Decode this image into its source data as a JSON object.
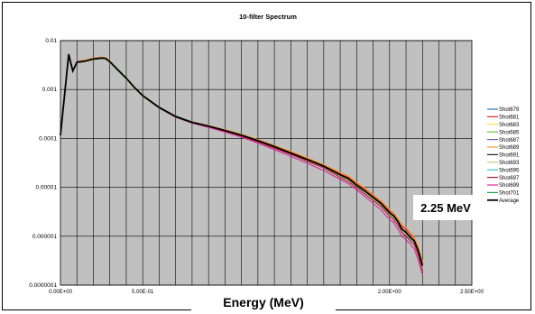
{
  "chart_data": {
    "type": "line",
    "title": "10-filter Spectrum",
    "xlabel": "Energy (MeV)",
    "ylabel": "",
    "x_scale": "linear",
    "y_scale": "log",
    "xlim": [
      0,
      2.5
    ],
    "ylim": [
      1e-07,
      0.01
    ],
    "grid": true,
    "legend_position": "right",
    "plot_background": "#c0c0c0",
    "x_tick_labels": [
      "0.00E+00",
      "5.00E-01",
      "2.00E+00",
      "2.50E+00"
    ],
    "x_tick_values": [
      0,
      0.5,
      2.0,
      2.5
    ],
    "y_tick_labels": [
      "0.01",
      "0.001",
      "0.0001",
      "0.00001",
      "0.000001",
      "0.0000001"
    ],
    "y_tick_values": [
      0.01,
      0.001,
      0.0001,
      1e-05,
      1e-06,
      1e-07
    ],
    "annotation": "2.25 MeV",
    "x": [
      0.0,
      0.05,
      0.075,
      0.1,
      0.15,
      0.2,
      0.25,
      0.275,
      0.3,
      0.35,
      0.4,
      0.45,
      0.5,
      0.6,
      0.7,
      0.8,
      0.9,
      1.0,
      1.1,
      1.2,
      1.3,
      1.4,
      1.5,
      1.6,
      1.7,
      1.75,
      1.8,
      1.85,
      1.9,
      1.95,
      2.0,
      2.025,
      2.05,
      2.075,
      2.1,
      2.125,
      2.15,
      2.175,
      2.2
    ],
    "series": [
      {
        "name": "Shot679",
        "color": "#1f78c8",
        "values": [
          0.000115,
          0.0052,
          0.0024,
          0.0036,
          0.0038,
          0.0042,
          0.0044,
          0.0043,
          0.0037,
          0.0025,
          0.0017,
          0.0011,
          0.00075,
          0.00043,
          0.00028,
          0.000215,
          0.00018,
          0.000145,
          0.000115,
          8.8e-05,
          6.6e-05,
          4.9e-05,
          3.6e-05,
          2.6e-05,
          1.7e-05,
          1.4e-05,
          1.05e-05,
          7.9e-06,
          5.8e-06,
          4.3e-06,
          2.8e-06,
          2.4e-06,
          1.8e-06,
          1.3e-06,
          1.1e-06,
          9e-07,
          7.5e-07,
          4.5e-07,
          2.2e-07
        ]
      },
      {
        "name": "Shot681",
        "color": "#e8261c",
        "values": [
          0.000115,
          0.0052,
          0.0024,
          0.0037,
          0.0039,
          0.0043,
          0.0045,
          0.0044,
          0.0038,
          0.0025,
          0.0017,
          0.0011,
          0.00075,
          0.00043,
          0.00028,
          0.000215,
          0.00018,
          0.00015,
          0.00012,
          9.3e-05,
          7e-05,
          5.2e-05,
          3.9e-05,
          2.8e-05,
          1.9e-05,
          1.6e-05,
          1.2e-05,
          9.2e-06,
          6.8e-06,
          5e-06,
          3.3e-06,
          2.9e-06,
          2.2e-06,
          1.6e-06,
          1.4e-06,
          1.1e-06,
          9e-07,
          5.8e-07,
          2.9e-07
        ]
      },
      {
        "name": "Shot683",
        "color": "#f0e040",
        "values": [
          0.000115,
          0.0051,
          0.0024,
          0.0036,
          0.0038,
          0.0042,
          0.0044,
          0.0043,
          0.0037,
          0.0025,
          0.0017,
          0.0011,
          0.00074,
          0.00042,
          0.00028,
          0.00021,
          0.000178,
          0.000145,
          0.000116,
          9e-05,
          6.8e-05,
          5e-05,
          3.7e-05,
          2.7e-05,
          1.8e-05,
          1.5e-05,
          1.1e-05,
          8.4e-06,
          6.2e-06,
          4.6e-06,
          3e-06,
          2.6e-06,
          2e-06,
          1.4e-06,
          1.2e-06,
          9.5e-07,
          8e-07,
          5e-07,
          2.5e-07
        ]
      },
      {
        "name": "Shot685",
        "color": "#6abf45",
        "values": [
          0.000115,
          0.0052,
          0.0024,
          0.0036,
          0.0038,
          0.0042,
          0.0044,
          0.0043,
          0.0036,
          0.0024,
          0.0016,
          0.00105,
          0.00072,
          0.00041,
          0.00027,
          0.00021,
          0.000176,
          0.000144,
          0.000114,
          8.8e-05,
          6.6e-05,
          4.9e-05,
          3.6e-05,
          2.6e-05,
          1.7e-05,
          1.4e-05,
          1.05e-05,
          7.9e-06,
          5.8e-06,
          4.3e-06,
          2.8e-06,
          2.4e-06,
          1.8e-06,
          1.3e-06,
          1.1e-06,
          9e-07,
          7.5e-07,
          4.5e-07,
          2.2e-07
        ]
      },
      {
        "name": "Shot687",
        "color": "#7b4fc0",
        "values": [
          0.000115,
          0.0052,
          0.0024,
          0.0038,
          0.004,
          0.0044,
          0.0045,
          0.0044,
          0.0038,
          0.0025,
          0.0017,
          0.0011,
          0.00075,
          0.00043,
          0.00028,
          0.000215,
          0.00018,
          0.000146,
          0.000116,
          9e-05,
          6.8e-05,
          5e-05,
          3.7e-05,
          2.7e-05,
          1.8e-05,
          1.5e-05,
          1.1e-05,
          8.4e-06,
          6.2e-06,
          4.6e-06,
          3e-06,
          2.6e-06,
          2e-06,
          1.4e-06,
          1.2e-06,
          9.5e-07,
          8e-07,
          5e-07,
          2.5e-07
        ]
      },
      {
        "name": "Shot689",
        "color": "#f39a2a",
        "values": [
          0.000115,
          0.0052,
          0.0025,
          0.0037,
          0.004,
          0.0044,
          0.0046,
          0.0045,
          0.0039,
          0.0026,
          0.0017,
          0.0011,
          0.00076,
          0.00044,
          0.00029,
          0.00022,
          0.000185,
          0.000152,
          0.000122,
          9.5e-05,
          7.2e-05,
          5.4e-05,
          4e-05,
          2.9e-05,
          2e-05,
          1.7e-05,
          1.25e-05,
          9.6e-06,
          7.1e-06,
          5.2e-06,
          3.5e-06,
          3e-06,
          2.3e-06,
          1.7e-06,
          1.5e-06,
          1.2e-06,
          9.5e-07,
          6e-07,
          3e-07
        ]
      },
      {
        "name": "Shot691",
        "color": "#222222",
        "values": [
          0.000115,
          0.0052,
          0.0024,
          0.0036,
          0.0038,
          0.0042,
          0.0044,
          0.0043,
          0.0037,
          0.0025,
          0.0017,
          0.0011,
          0.00075,
          0.00043,
          0.00028,
          0.000212,
          0.000178,
          0.000145,
          0.000116,
          9e-05,
          6.8e-05,
          5e-05,
          3.7e-05,
          2.7e-05,
          1.8e-05,
          1.5e-05,
          1.1e-05,
          8.4e-06,
          6.2e-06,
          4.6e-06,
          3e-06,
          2.6e-06,
          2e-06,
          1.4e-06,
          1.2e-06,
          9.5e-07,
          8e-07,
          5e-07,
          2.5e-07
        ]
      },
      {
        "name": "Shot693",
        "color": "#b8d86a",
        "values": [
          0.000115,
          0.0051,
          0.0024,
          0.0035,
          0.0037,
          0.0041,
          0.0043,
          0.0042,
          0.0036,
          0.0024,
          0.0016,
          0.00105,
          0.00072,
          0.00041,
          0.00027,
          0.000208,
          0.000175,
          0.000143,
          0.000114,
          8.8e-05,
          6.6e-05,
          4.9e-05,
          3.6e-05,
          2.6e-05,
          1.7e-05,
          1.4e-05,
          1.05e-05,
          7.9e-06,
          5.8e-06,
          4.3e-06,
          2.8e-06,
          2.4e-06,
          1.8e-06,
          1.3e-06,
          1.1e-06,
          9e-07,
          7.5e-07,
          4.5e-07,
          2.2e-07
        ]
      },
      {
        "name": "Shot695",
        "color": "#33c3e0",
        "values": [
          0.000115,
          0.0052,
          0.0024,
          0.0036,
          0.0038,
          0.0042,
          0.0044,
          0.0043,
          0.0038,
          0.0026,
          0.0017,
          0.0011,
          0.00076,
          0.00044,
          0.00029,
          0.000218,
          0.000182,
          0.000147,
          0.000117,
          9e-05,
          6.8e-05,
          5e-05,
          3.7e-05,
          2.7e-05,
          1.8e-05,
          1.5e-05,
          1.1e-05,
          8.4e-06,
          6.2e-06,
          4.6e-06,
          3e-06,
          2.6e-06,
          2e-06,
          1.4e-06,
          1.2e-06,
          9.5e-07,
          8e-07,
          5e-07,
          2.5e-07
        ]
      },
      {
        "name": "Shot697",
        "color": "#b0183a",
        "values": [
          0.000115,
          0.0052,
          0.0024,
          0.0036,
          0.0038,
          0.0042,
          0.0044,
          0.0043,
          0.0037,
          0.0025,
          0.0017,
          0.0011,
          0.00074,
          0.00042,
          0.00028,
          0.00021,
          0.000172,
          0.00014,
          0.000111,
          8.5e-05,
          6.3e-05,
          4.7e-05,
          3.4e-05,
          2.5e-05,
          1.6e-05,
          1.3e-05,
          9.8e-06,
          7.3e-06,
          5.4e-06,
          4e-06,
          2.6e-06,
          2.2e-06,
          1.7e-06,
          1.2e-06,
          1e-06,
          8.2e-07,
          6.8e-07,
          4e-07,
          2e-07
        ]
      },
      {
        "name": "Shot699",
        "color": "#e0239c",
        "values": [
          0.000115,
          0.0052,
          0.0024,
          0.0036,
          0.0038,
          0.0042,
          0.0044,
          0.0043,
          0.0037,
          0.0025,
          0.0017,
          0.0011,
          0.00074,
          0.00042,
          0.00027,
          0.000205,
          0.000168,
          0.000135,
          0.000106,
          8e-05,
          5.9e-05,
          4.3e-05,
          3.1e-05,
          2.2e-05,
          1.45e-05,
          1.18e-05,
          8.8e-06,
          6.5e-06,
          4.7e-06,
          3.4e-06,
          2.2e-06,
          1.9e-06,
          1.4e-06,
          1e-06,
          8.5e-07,
          7e-07,
          5.5e-07,
          3.2e-07,
          1.6e-07
        ]
      },
      {
        "name": "Shot701",
        "color": "#1aa64a",
        "values": [
          0.000115,
          0.0055,
          0.0024,
          0.0036,
          0.0038,
          0.0042,
          0.0044,
          0.0043,
          0.0037,
          0.0025,
          0.0017,
          0.0011,
          0.00075,
          0.00043,
          0.00028,
          0.000212,
          0.000178,
          0.000145,
          0.000116,
          9e-05,
          6.8e-05,
          5e-05,
          3.7e-05,
          2.7e-05,
          1.8e-05,
          1.5e-05,
          1.1e-05,
          8.4e-06,
          6.2e-06,
          4.6e-06,
          3e-06,
          2.6e-06,
          2e-06,
          1.4e-06,
          1.2e-06,
          9.5e-07,
          8e-07,
          5e-07,
          2.5e-07
        ]
      },
      {
        "name": "Average",
        "color": "#000000",
        "values": [
          0.000115,
          0.0052,
          0.0024,
          0.0036,
          0.0038,
          0.0042,
          0.0044,
          0.0043,
          0.0037,
          0.0025,
          0.0017,
          0.0011,
          0.00075,
          0.00043,
          0.00028,
          0.000213,
          0.000178,
          0.000145,
          0.000116,
          9e-05,
          6.8e-05,
          5e-05,
          3.7e-05,
          2.7e-05,
          1.8e-05,
          1.5e-05,
          1.1e-05,
          8.4e-06,
          6.2e-06,
          4.6e-06,
          3e-06,
          2.6e-06,
          2e-06,
          1.4e-06,
          1.2e-06,
          9.5e-07,
          8e-07,
          5e-07,
          2.5e-07
        ]
      }
    ]
  }
}
